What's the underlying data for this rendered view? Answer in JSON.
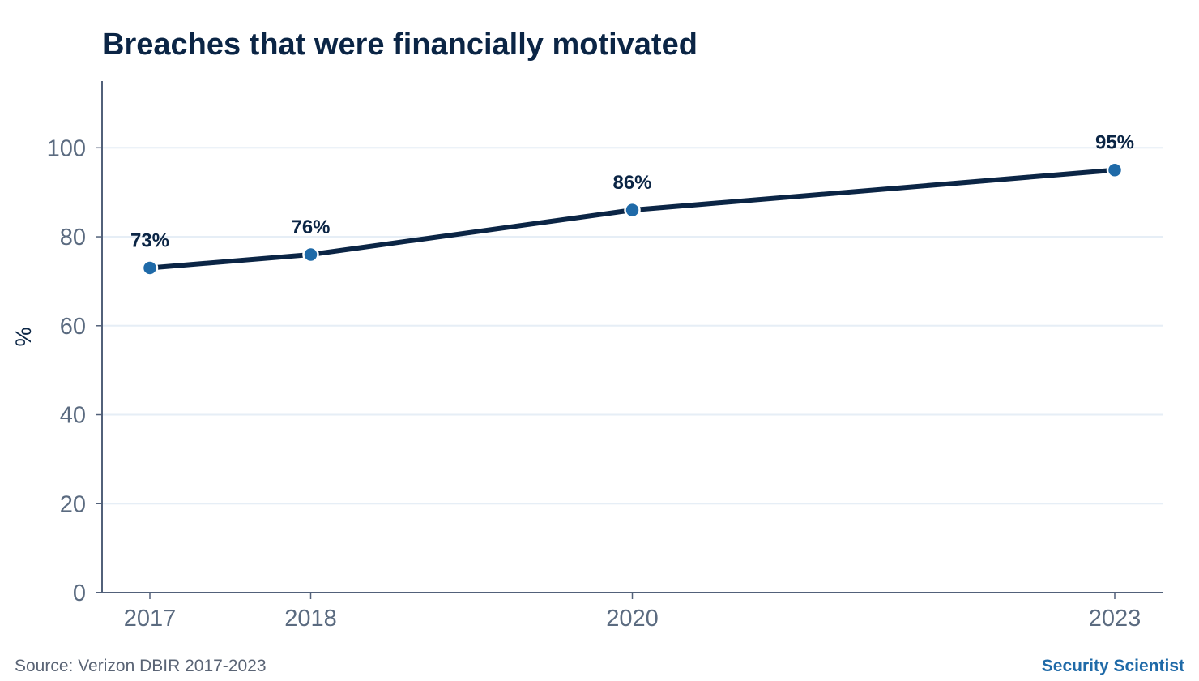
{
  "chart_data": {
    "type": "line",
    "title": "Breaches that were financially motivated",
    "xlabel": "",
    "ylabel": "%",
    "x": [
      2017,
      2018,
      2020,
      2023
    ],
    "x_tick_labels": [
      "2017",
      "2018",
      "2020",
      "2023"
    ],
    "y_ticks": [
      0,
      20,
      40,
      60,
      80,
      100
    ],
    "y_tick_labels": [
      "0",
      "20",
      "40",
      "60",
      "80",
      "100"
    ],
    "ylim": [
      0,
      115
    ],
    "grid": "horizontal",
    "series": [
      {
        "values": [
          73,
          76,
          86,
          95
        ],
        "labels": [
          "73%",
          "76%",
          "86%",
          "95%"
        ]
      }
    ]
  },
  "footer": {
    "source": "Source: Verizon DBIR 2017-2023",
    "brand": "Security Scientist"
  },
  "colors": {
    "title": "#0b2545",
    "line": "#0b2545",
    "marker": "#1f6aa8",
    "grid": "#e6eef6",
    "axis": "#52617a",
    "tick_text": "#5b6b80",
    "brand": "#1f6aa8",
    "source": "#5a6475"
  }
}
